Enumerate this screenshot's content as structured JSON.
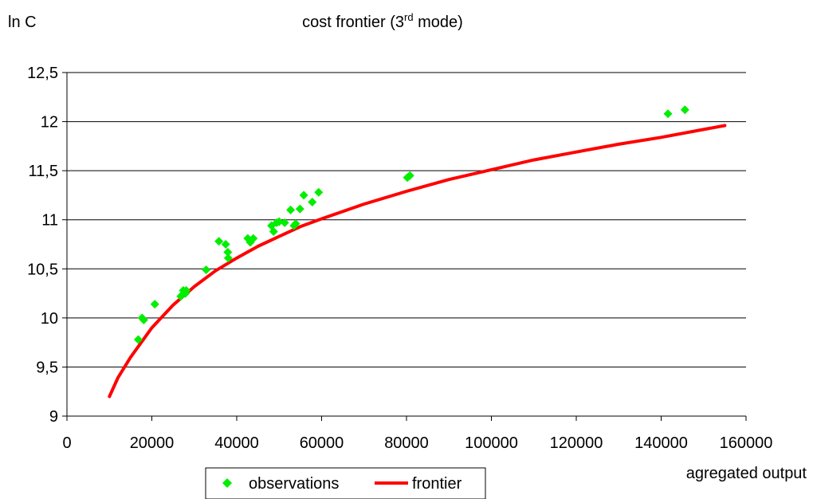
{
  "chart_data": {
    "type": "scatter",
    "title": "cost frontier (3",
    "title_sup": "rd",
    "title_end": " mode)",
    "xlabel": "agregated output",
    "ylabel": "ln C",
    "xlim": [
      0,
      160000
    ],
    "ylim": [
      9,
      12.5
    ],
    "x_ticks": [
      "0",
      "20000",
      "40000",
      "60000",
      "80000",
      "100000",
      "120000",
      "140000",
      "160000"
    ],
    "y_ticks": [
      "9",
      "9,5",
      "10",
      "10,5",
      "11",
      "11,5",
      "12",
      "12,5"
    ],
    "grid": "horizontal",
    "legend_placement": "bottom",
    "colors": {
      "observations": "#00ee00",
      "frontier": "#ff0000",
      "grid": "#000000"
    },
    "series": [
      {
        "name": "observations",
        "kind": "scatter",
        "points": [
          [
            16800,
            9.78
          ],
          [
            17700,
            10.0
          ],
          [
            18100,
            9.98
          ],
          [
            20700,
            10.14
          ],
          [
            26800,
            10.22
          ],
          [
            27400,
            10.28
          ],
          [
            27900,
            10.25
          ],
          [
            28100,
            10.28
          ],
          [
            32800,
            10.49
          ],
          [
            35800,
            10.78
          ],
          [
            37400,
            10.75
          ],
          [
            37900,
            10.67
          ],
          [
            38000,
            10.61
          ],
          [
            42600,
            10.81
          ],
          [
            43200,
            10.77
          ],
          [
            43900,
            10.81
          ],
          [
            48200,
            10.94
          ],
          [
            48700,
            10.88
          ],
          [
            49400,
            10.97
          ],
          [
            50000,
            10.98
          ],
          [
            51300,
            10.97
          ],
          [
            52700,
            11.1
          ],
          [
            53500,
            10.94
          ],
          [
            53900,
            10.96
          ],
          [
            54900,
            11.11
          ],
          [
            55800,
            11.25
          ],
          [
            57800,
            11.18
          ],
          [
            59300,
            11.28
          ],
          [
            80200,
            11.43
          ],
          [
            80800,
            11.45
          ],
          [
            141600,
            12.08
          ],
          [
            145600,
            12.12
          ]
        ]
      },
      {
        "name": "frontier",
        "kind": "line",
        "points": [
          [
            10000,
            9.2
          ],
          [
            12000,
            9.39
          ],
          [
            15000,
            9.6
          ],
          [
            20000,
            9.9
          ],
          [
            25000,
            10.13
          ],
          [
            30000,
            10.32
          ],
          [
            35000,
            10.48
          ],
          [
            40000,
            10.61
          ],
          [
            45000,
            10.73
          ],
          [
            50000,
            10.83
          ],
          [
            55000,
            10.93
          ],
          [
            60000,
            11.01
          ],
          [
            70000,
            11.16
          ],
          [
            80000,
            11.29
          ],
          [
            90000,
            11.41
          ],
          [
            100000,
            11.51
          ],
          [
            110000,
            11.61
          ],
          [
            120000,
            11.69
          ],
          [
            130000,
            11.77
          ],
          [
            140000,
            11.84
          ],
          [
            150000,
            11.92
          ],
          [
            155000,
            11.96
          ]
        ]
      }
    ]
  }
}
